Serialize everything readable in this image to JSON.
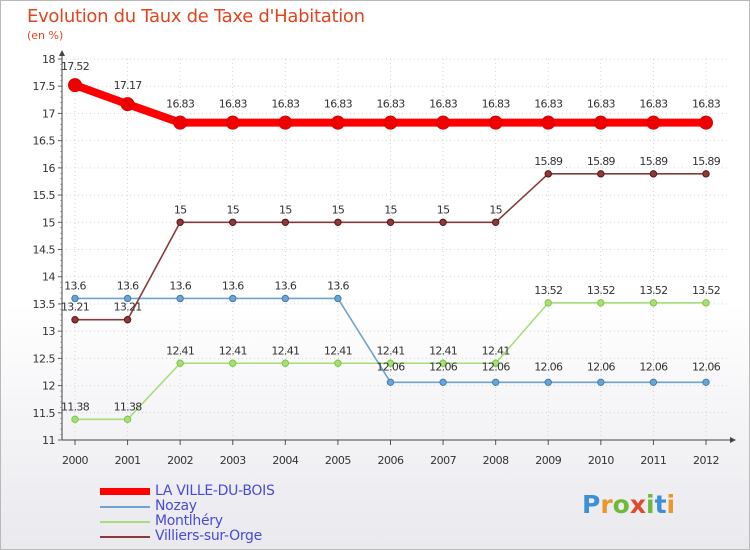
{
  "title": "Evolution du Taux de Taxe d'Habitation",
  "subtitle": "(en %)",
  "brand": "Proxiti",
  "chart_data": {
    "type": "line",
    "title": "Evolution du Taux de Taxe d'Habitation",
    "ylabel": "(en %)",
    "xlabel": "",
    "ylim": [
      11,
      18
    ],
    "grid": true,
    "legend_position": "bottom-left",
    "y_ticks": [
      "11",
      "11.5",
      "12",
      "12.5",
      "13",
      "13.5",
      "14",
      "14.5",
      "15",
      "15.5",
      "16",
      "16.5",
      "17",
      "17.5",
      "18"
    ],
    "categories": [
      "2000",
      "2001",
      "2002",
      "2003",
      "2004",
      "2005",
      "2006",
      "2007",
      "2008",
      "2009",
      "2010",
      "2011",
      "2012"
    ],
    "series": [
      {
        "name": "LA VILLE-DU-BOIS",
        "color": "#ff0000",
        "marker_color": "#e00000",
        "values": [
          17.52,
          17.17,
          16.83,
          16.83,
          16.83,
          16.83,
          16.83,
          16.83,
          16.83,
          16.83,
          16.83,
          16.83,
          16.83
        ],
        "labels": [
          "17.52",
          "17.17",
          "16.83",
          "16.83",
          "16.83",
          "16.83",
          "16.83",
          "16.83",
          "16.83",
          "16.83",
          "16.83",
          "16.83",
          "16.83"
        ]
      },
      {
        "name": "Nozay",
        "color": "#6fa2cf",
        "marker_color": "#3b7dbb",
        "values": [
          13.6,
          13.6,
          13.6,
          13.6,
          13.6,
          13.6,
          12.06,
          12.06,
          12.06,
          12.06,
          12.06,
          12.06,
          12.06
        ],
        "labels": [
          "13.6",
          "13.6",
          "13.6",
          "13.6",
          "13.6",
          "13.6",
          "12.06",
          "12.06",
          "12.06",
          "12.06",
          "12.06",
          "12.06",
          "12.06"
        ]
      },
      {
        "name": "Montlhéry",
        "color": "#a8dc7c",
        "marker_color": "#7cc93a",
        "values": [
          11.38,
          11.38,
          12.41,
          12.41,
          12.41,
          12.41,
          12.41,
          12.41,
          12.41,
          13.52,
          13.52,
          13.52,
          13.52
        ],
        "labels": [
          "11.38",
          "11.38",
          "12.41",
          "12.41",
          "12.41",
          "12.41",
          "12.41",
          "12.41",
          "12.41",
          "13.52",
          "13.52",
          "13.52",
          "13.52"
        ]
      },
      {
        "name": "Villiers-sur-Orge",
        "color": "#8a3a3a",
        "marker_color": "#5a1414",
        "values": [
          13.21,
          13.21,
          15,
          15,
          15,
          15,
          15,
          15,
          15,
          15.89,
          15.89,
          15.89,
          15.89
        ],
        "labels": [
          "13.21",
          "13.21",
          "15",
          "15",
          "15",
          "15",
          "15",
          "15",
          "15",
          "15.89",
          "15.89",
          "15.89",
          "15.89"
        ]
      }
    ]
  }
}
